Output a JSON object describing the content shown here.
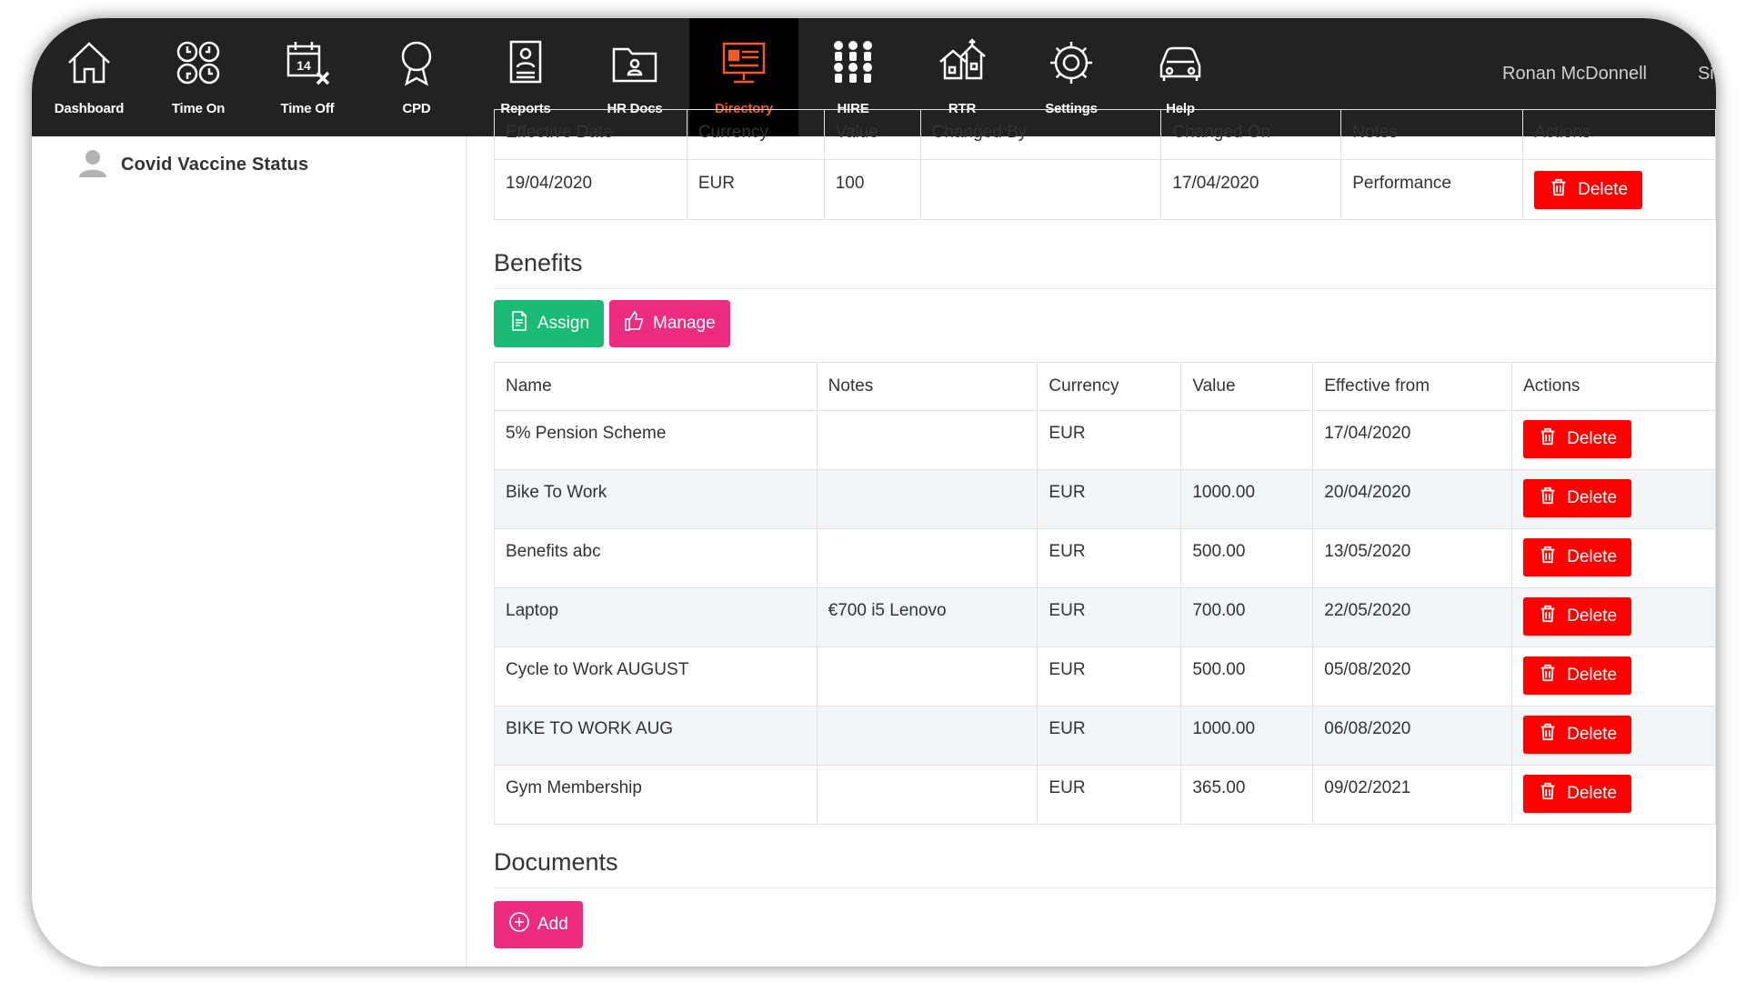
{
  "nav": {
    "items": [
      {
        "label": "Dashboard",
        "icon": "home-icon"
      },
      {
        "label": "Time On",
        "icon": "clocks-icon"
      },
      {
        "label": "Time Off",
        "icon": "calendar-off-icon"
      },
      {
        "label": "CPD",
        "icon": "award-icon"
      },
      {
        "label": "Reports",
        "icon": "report-icon"
      },
      {
        "label": "HR Docs",
        "icon": "folder-icon"
      },
      {
        "label": "Directory",
        "icon": "directory-icon"
      },
      {
        "label": "HIRE",
        "icon": "people-grid-icon"
      },
      {
        "label": "RTR",
        "icon": "houses-icon"
      },
      {
        "label": "Settings",
        "icon": "gear-icon"
      },
      {
        "label": "Help",
        "icon": "car-icon"
      }
    ],
    "active": "Directory",
    "user_name": "Ronan McDonnell",
    "sign_out": "Sign"
  },
  "sidebar": {
    "item_label": "Covid Vaccine Status"
  },
  "compensation": {
    "headers": [
      "Effective Date",
      "Currency",
      "Value",
      "Changed By",
      "Changed On",
      "Notes",
      "Actions"
    ],
    "row": {
      "effective_date": "19/04/2020",
      "currency": "EUR",
      "value": "100",
      "changed_by": "",
      "changed_on": "17/04/2020",
      "notes": "Performance"
    },
    "delete_label": "Delete"
  },
  "benefits": {
    "title": "Benefits",
    "assign_label": "Assign",
    "manage_label": "Manage",
    "headers": [
      "Name",
      "Notes",
      "Currency",
      "Value",
      "Effective from",
      "Actions"
    ],
    "delete_label": "Delete",
    "rows": [
      {
        "name": "5% Pension Scheme",
        "notes": "",
        "currency": "EUR",
        "value": "",
        "effective_from": "17/04/2020"
      },
      {
        "name": "Bike To Work",
        "notes": "",
        "currency": "EUR",
        "value": "1000.00",
        "effective_from": "20/04/2020"
      },
      {
        "name": "Benefits abc",
        "notes": "",
        "currency": "EUR",
        "value": "500.00",
        "effective_from": "13/05/2020"
      },
      {
        "name": "Laptop",
        "notes": "€700 i5 Lenovo",
        "currency": "EUR",
        "value": "700.00",
        "effective_from": "22/05/2020"
      },
      {
        "name": "Cycle to Work AUGUST",
        "notes": "",
        "currency": "EUR",
        "value": "500.00",
        "effective_from": "05/08/2020"
      },
      {
        "name": "BIKE TO WORK AUG",
        "notes": "",
        "currency": "EUR",
        "value": "1000.00",
        "effective_from": "06/08/2020"
      },
      {
        "name": "Gym Membership",
        "notes": "",
        "currency": "EUR",
        "value": "365.00",
        "effective_from": "09/02/2021"
      }
    ]
  },
  "documents": {
    "title": "Documents",
    "add_label": "Add"
  },
  "colors": {
    "nav_bg": "#222222",
    "active_accent": "#f05a28",
    "assign": "#1abb76",
    "pink": "#ec2c7e",
    "delete": "#ff0000"
  }
}
